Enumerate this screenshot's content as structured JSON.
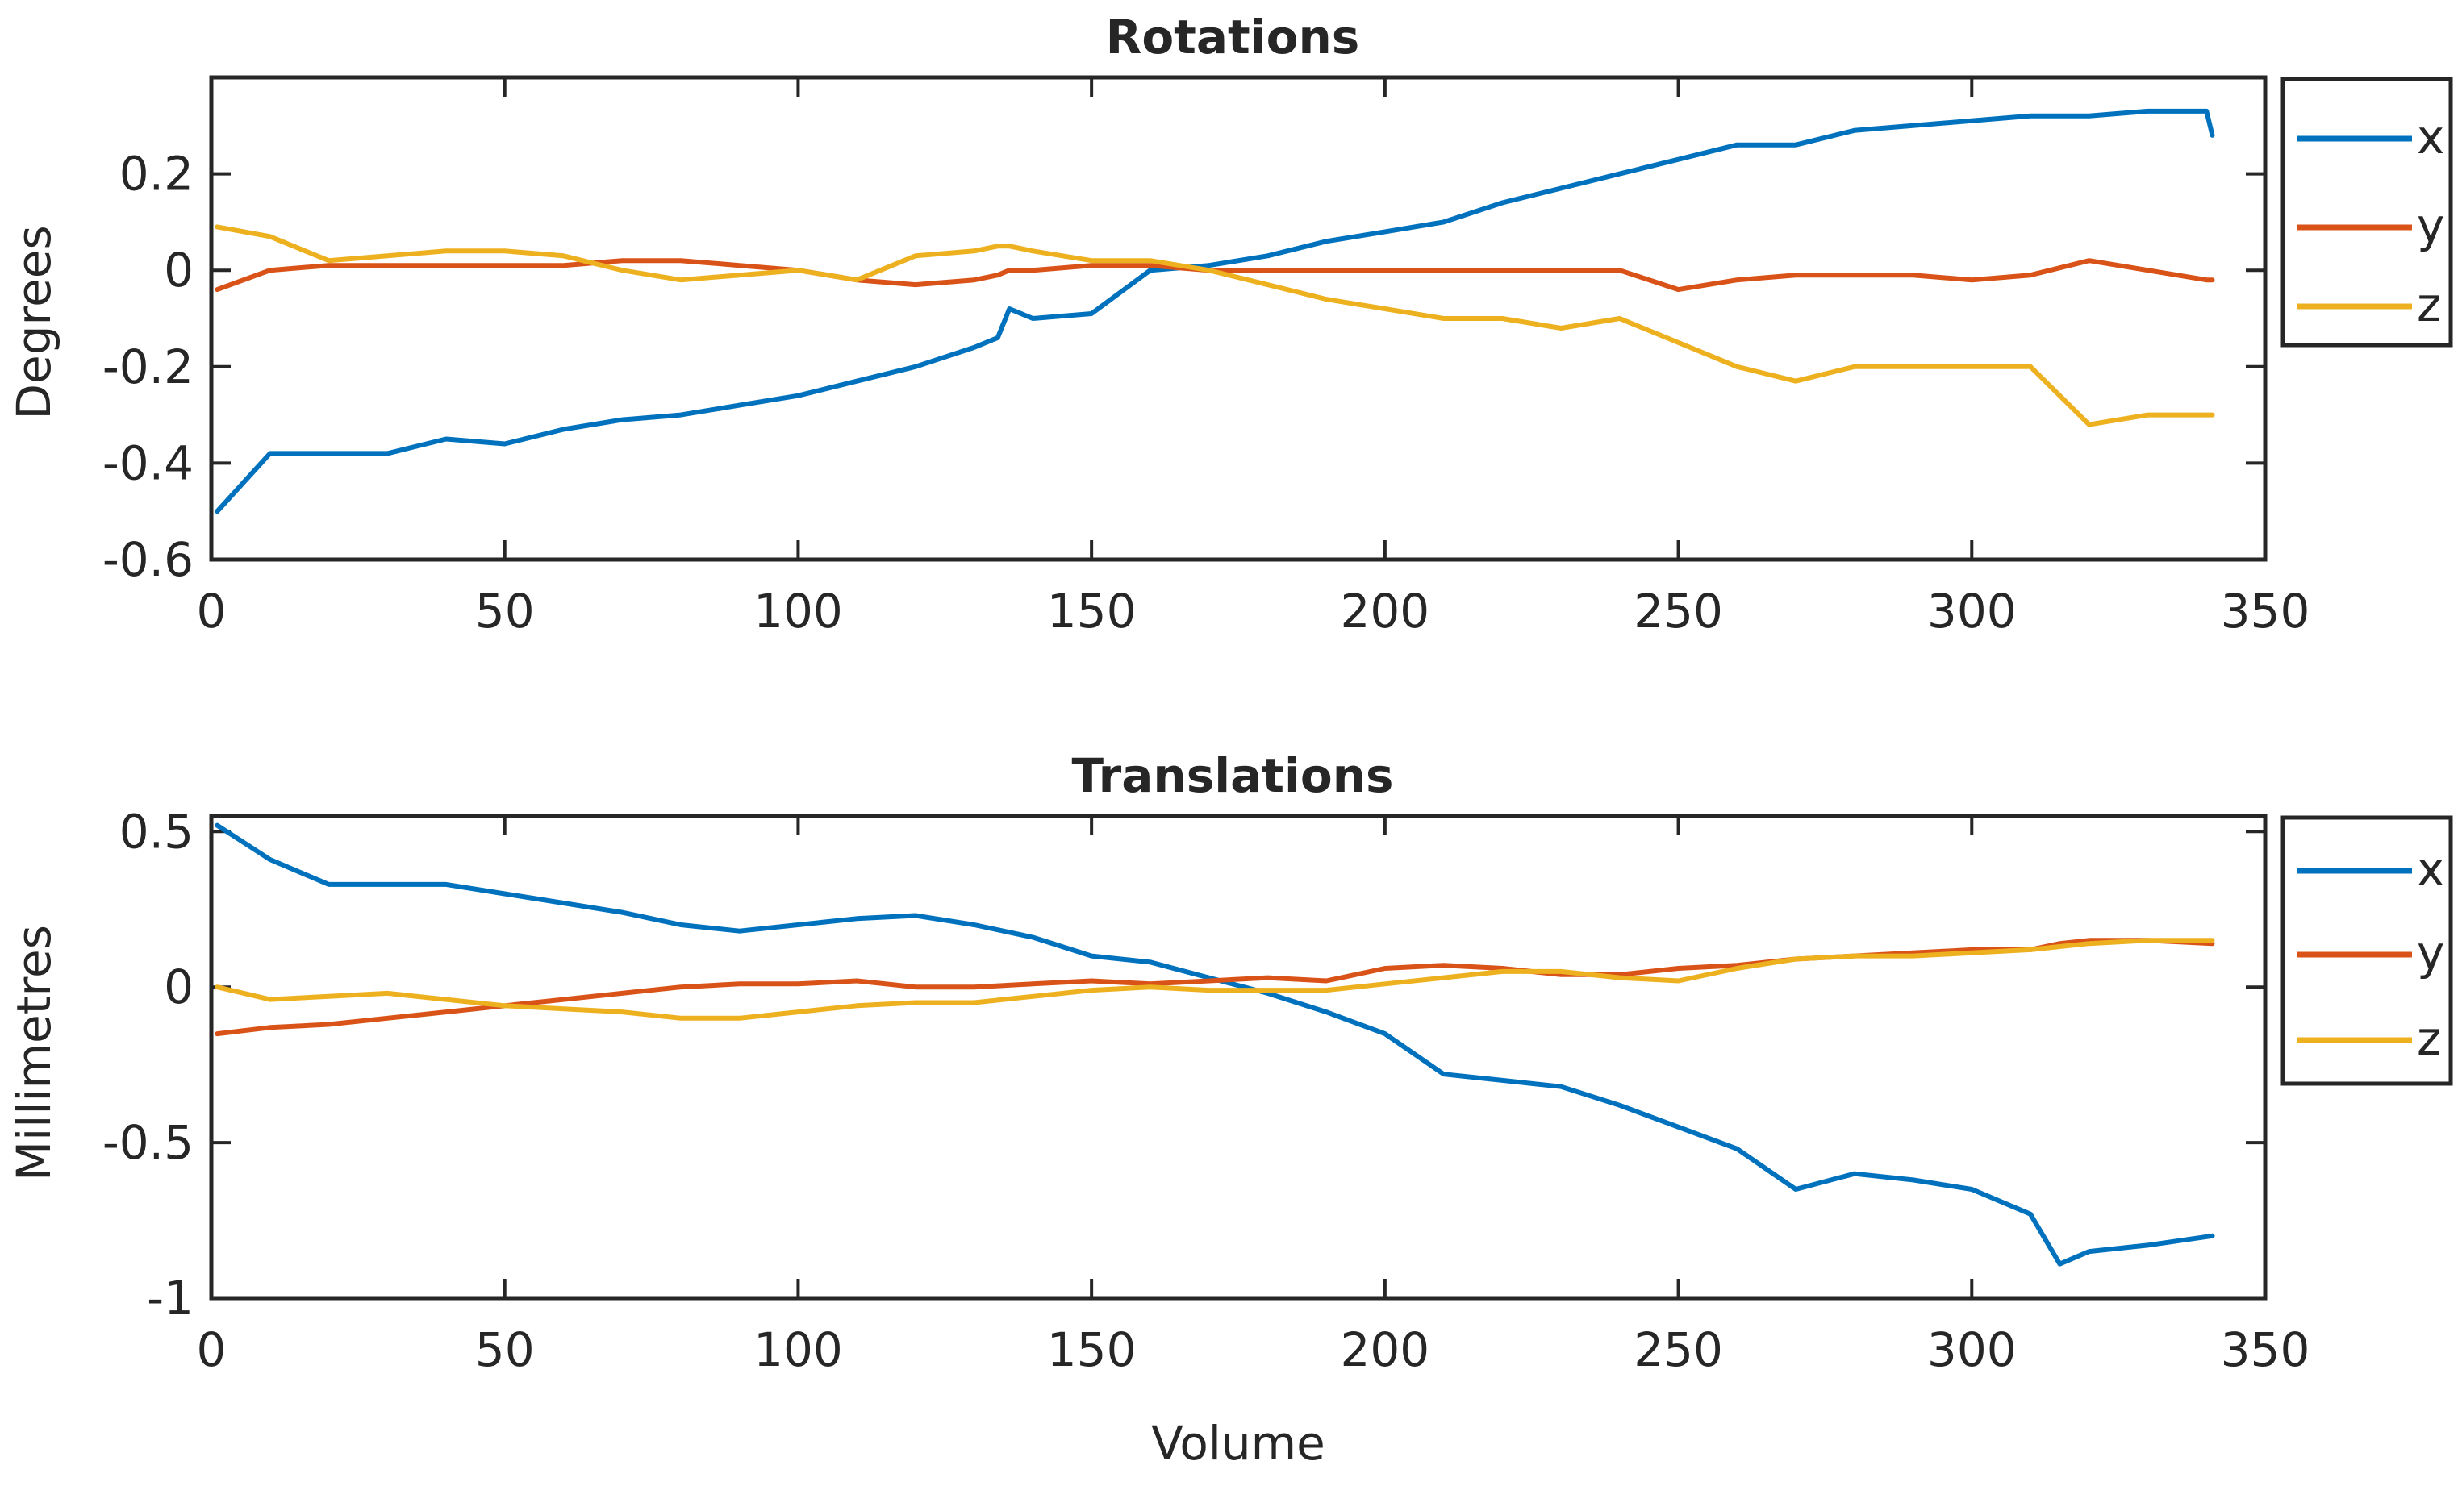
{
  "colors": {
    "x": "#0072BD",
    "y": "#D95319",
    "z": "#EDB120",
    "axis": "#262626",
    "background": "#ffffff"
  },
  "chart_data": [
    {
      "type": "line",
      "title": "Rotations",
      "xlabel": "",
      "ylabel": "Degrees",
      "xlim": [
        0,
        350
      ],
      "ylim": [
        -0.6,
        0.4
      ],
      "xticks": [
        "0",
        "50",
        "100",
        "150",
        "200",
        "250",
        "300",
        "350"
      ],
      "yticks": [
        "-0.6",
        "-0.4",
        "-0.2",
        "0",
        "0.2"
      ],
      "grid": false,
      "legend": "outside-top-right",
      "x": [
        1,
        10,
        20,
        30,
        40,
        50,
        60,
        70,
        80,
        90,
        100,
        110,
        120,
        130,
        134,
        136,
        140,
        150,
        160,
        170,
        180,
        190,
        200,
        210,
        220,
        230,
        240,
        250,
        260,
        270,
        280,
        290,
        300,
        310,
        320,
        330,
        340,
        341
      ],
      "series": [
        {
          "name": "x",
          "values": [
            -0.5,
            -0.38,
            -0.38,
            -0.38,
            -0.35,
            -0.36,
            -0.33,
            -0.31,
            -0.3,
            -0.28,
            -0.26,
            -0.23,
            -0.2,
            -0.16,
            -0.14,
            -0.08,
            -0.1,
            -0.09,
            0.0,
            0.01,
            0.03,
            0.06,
            0.08,
            0.1,
            0.14,
            0.17,
            0.2,
            0.23,
            0.26,
            0.26,
            0.29,
            0.3,
            0.31,
            0.32,
            0.32,
            0.33,
            0.33,
            0.28
          ]
        },
        {
          "name": "y",
          "values": [
            -0.04,
            0.0,
            0.01,
            0.01,
            0.01,
            0.01,
            0.01,
            0.02,
            0.02,
            0.01,
            0.0,
            -0.02,
            -0.03,
            -0.02,
            -0.01,
            0.0,
            0.0,
            0.01,
            0.01,
            0.0,
            0.0,
            0.0,
            0.0,
            0.0,
            0.0,
            0.0,
            0.0,
            -0.04,
            -0.02,
            -0.01,
            -0.01,
            -0.01,
            -0.02,
            -0.01,
            0.02,
            0.0,
            -0.02,
            -0.02
          ]
        },
        {
          "name": "z",
          "values": [
            0.09,
            0.07,
            0.02,
            0.03,
            0.04,
            0.04,
            0.03,
            0.0,
            -0.02,
            -0.01,
            0.0,
            -0.02,
            0.03,
            0.04,
            0.05,
            0.05,
            0.04,
            0.02,
            0.02,
            0.0,
            -0.03,
            -0.06,
            -0.08,
            -0.1,
            -0.1,
            -0.12,
            -0.1,
            -0.15,
            -0.2,
            -0.23,
            -0.2,
            -0.2,
            -0.2,
            -0.2,
            -0.32,
            -0.3,
            -0.3,
            -0.3
          ]
        }
      ]
    },
    {
      "type": "line",
      "title": "Translations",
      "xlabel": "Volume",
      "ylabel": "Millimetres",
      "xlim": [
        0,
        350
      ],
      "ylim": [
        -1,
        0.55
      ],
      "xticks": [
        "0",
        "50",
        "100",
        "150",
        "200",
        "250",
        "300",
        "350"
      ],
      "yticks": [
        "-1",
        "-0.5",
        "0",
        "0.5"
      ],
      "grid": false,
      "legend": "outside-top-right",
      "x": [
        1,
        10,
        20,
        30,
        40,
        50,
        60,
        70,
        80,
        90,
        100,
        110,
        120,
        130,
        140,
        150,
        160,
        170,
        180,
        190,
        200,
        210,
        220,
        230,
        240,
        250,
        260,
        270,
        280,
        290,
        300,
        310,
        315,
        320,
        330,
        341
      ],
      "series": [
        {
          "name": "x",
          "values": [
            0.52,
            0.41,
            0.33,
            0.33,
            0.33,
            0.3,
            0.27,
            0.24,
            0.2,
            0.18,
            0.2,
            0.22,
            0.23,
            0.2,
            0.16,
            0.1,
            0.08,
            0.03,
            -0.02,
            -0.08,
            -0.15,
            -0.28,
            -0.3,
            -0.32,
            -0.38,
            -0.45,
            -0.52,
            -0.65,
            -0.6,
            -0.62,
            -0.65,
            -0.73,
            -0.89,
            -0.85,
            -0.83,
            -0.8
          ]
        },
        {
          "name": "y",
          "values": [
            -0.15,
            -0.13,
            -0.12,
            -0.1,
            -0.08,
            -0.06,
            -0.04,
            -0.02,
            0.0,
            0.01,
            0.01,
            0.02,
            0.0,
            0.0,
            0.01,
            0.02,
            0.01,
            0.02,
            0.03,
            0.02,
            0.06,
            0.07,
            0.06,
            0.04,
            0.04,
            0.06,
            0.07,
            0.09,
            0.1,
            0.11,
            0.12,
            0.12,
            0.14,
            0.15,
            0.15,
            0.14
          ]
        },
        {
          "name": "z",
          "values": [
            0.0,
            -0.04,
            -0.03,
            -0.02,
            -0.04,
            -0.06,
            -0.07,
            -0.08,
            -0.1,
            -0.1,
            -0.08,
            -0.06,
            -0.05,
            -0.05,
            -0.03,
            -0.01,
            0.0,
            -0.01,
            -0.01,
            -0.01,
            0.01,
            0.03,
            0.05,
            0.05,
            0.03,
            0.02,
            0.06,
            0.09,
            0.1,
            0.1,
            0.11,
            0.12,
            0.13,
            0.14,
            0.15,
            0.15
          ]
        }
      ]
    }
  ]
}
